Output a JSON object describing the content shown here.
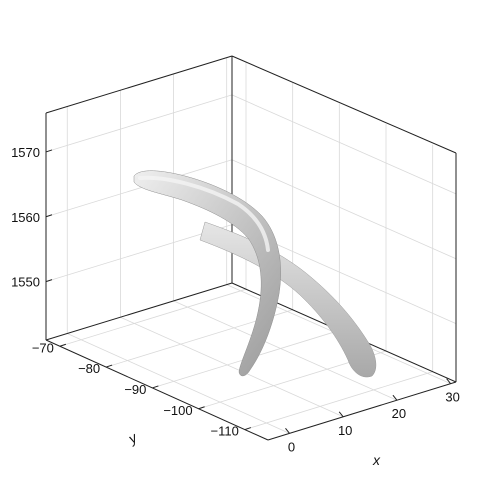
{
  "chart_data": {
    "type": "surface3d",
    "title": "",
    "xlabel": "x",
    "ylabel": "y",
    "zlabel": "",
    "x_ticks": [
      0,
      10,
      20,
      30
    ],
    "y_ticks": [
      -70,
      -80,
      -90,
      -100,
      -110
    ],
    "z_ticks": [
      1550,
      1560,
      1570
    ],
    "x_tick_labels": [
      "0",
      "10",
      "20",
      "30"
    ],
    "y_tick_labels": [
      "−70",
      "−80",
      "−90",
      "−100",
      "−110"
    ],
    "z_tick_labels": [
      "1550",
      "1560",
      "1570"
    ],
    "xlim": [
      -4,
      31
    ],
    "ylim": [
      -115,
      -67
    ],
    "zlim": [
      1541,
      1576
    ],
    "grid": true,
    "surface_color": "#c8c8c8",
    "grid_color": "#d9d9d9",
    "box_color": "#222222"
  }
}
